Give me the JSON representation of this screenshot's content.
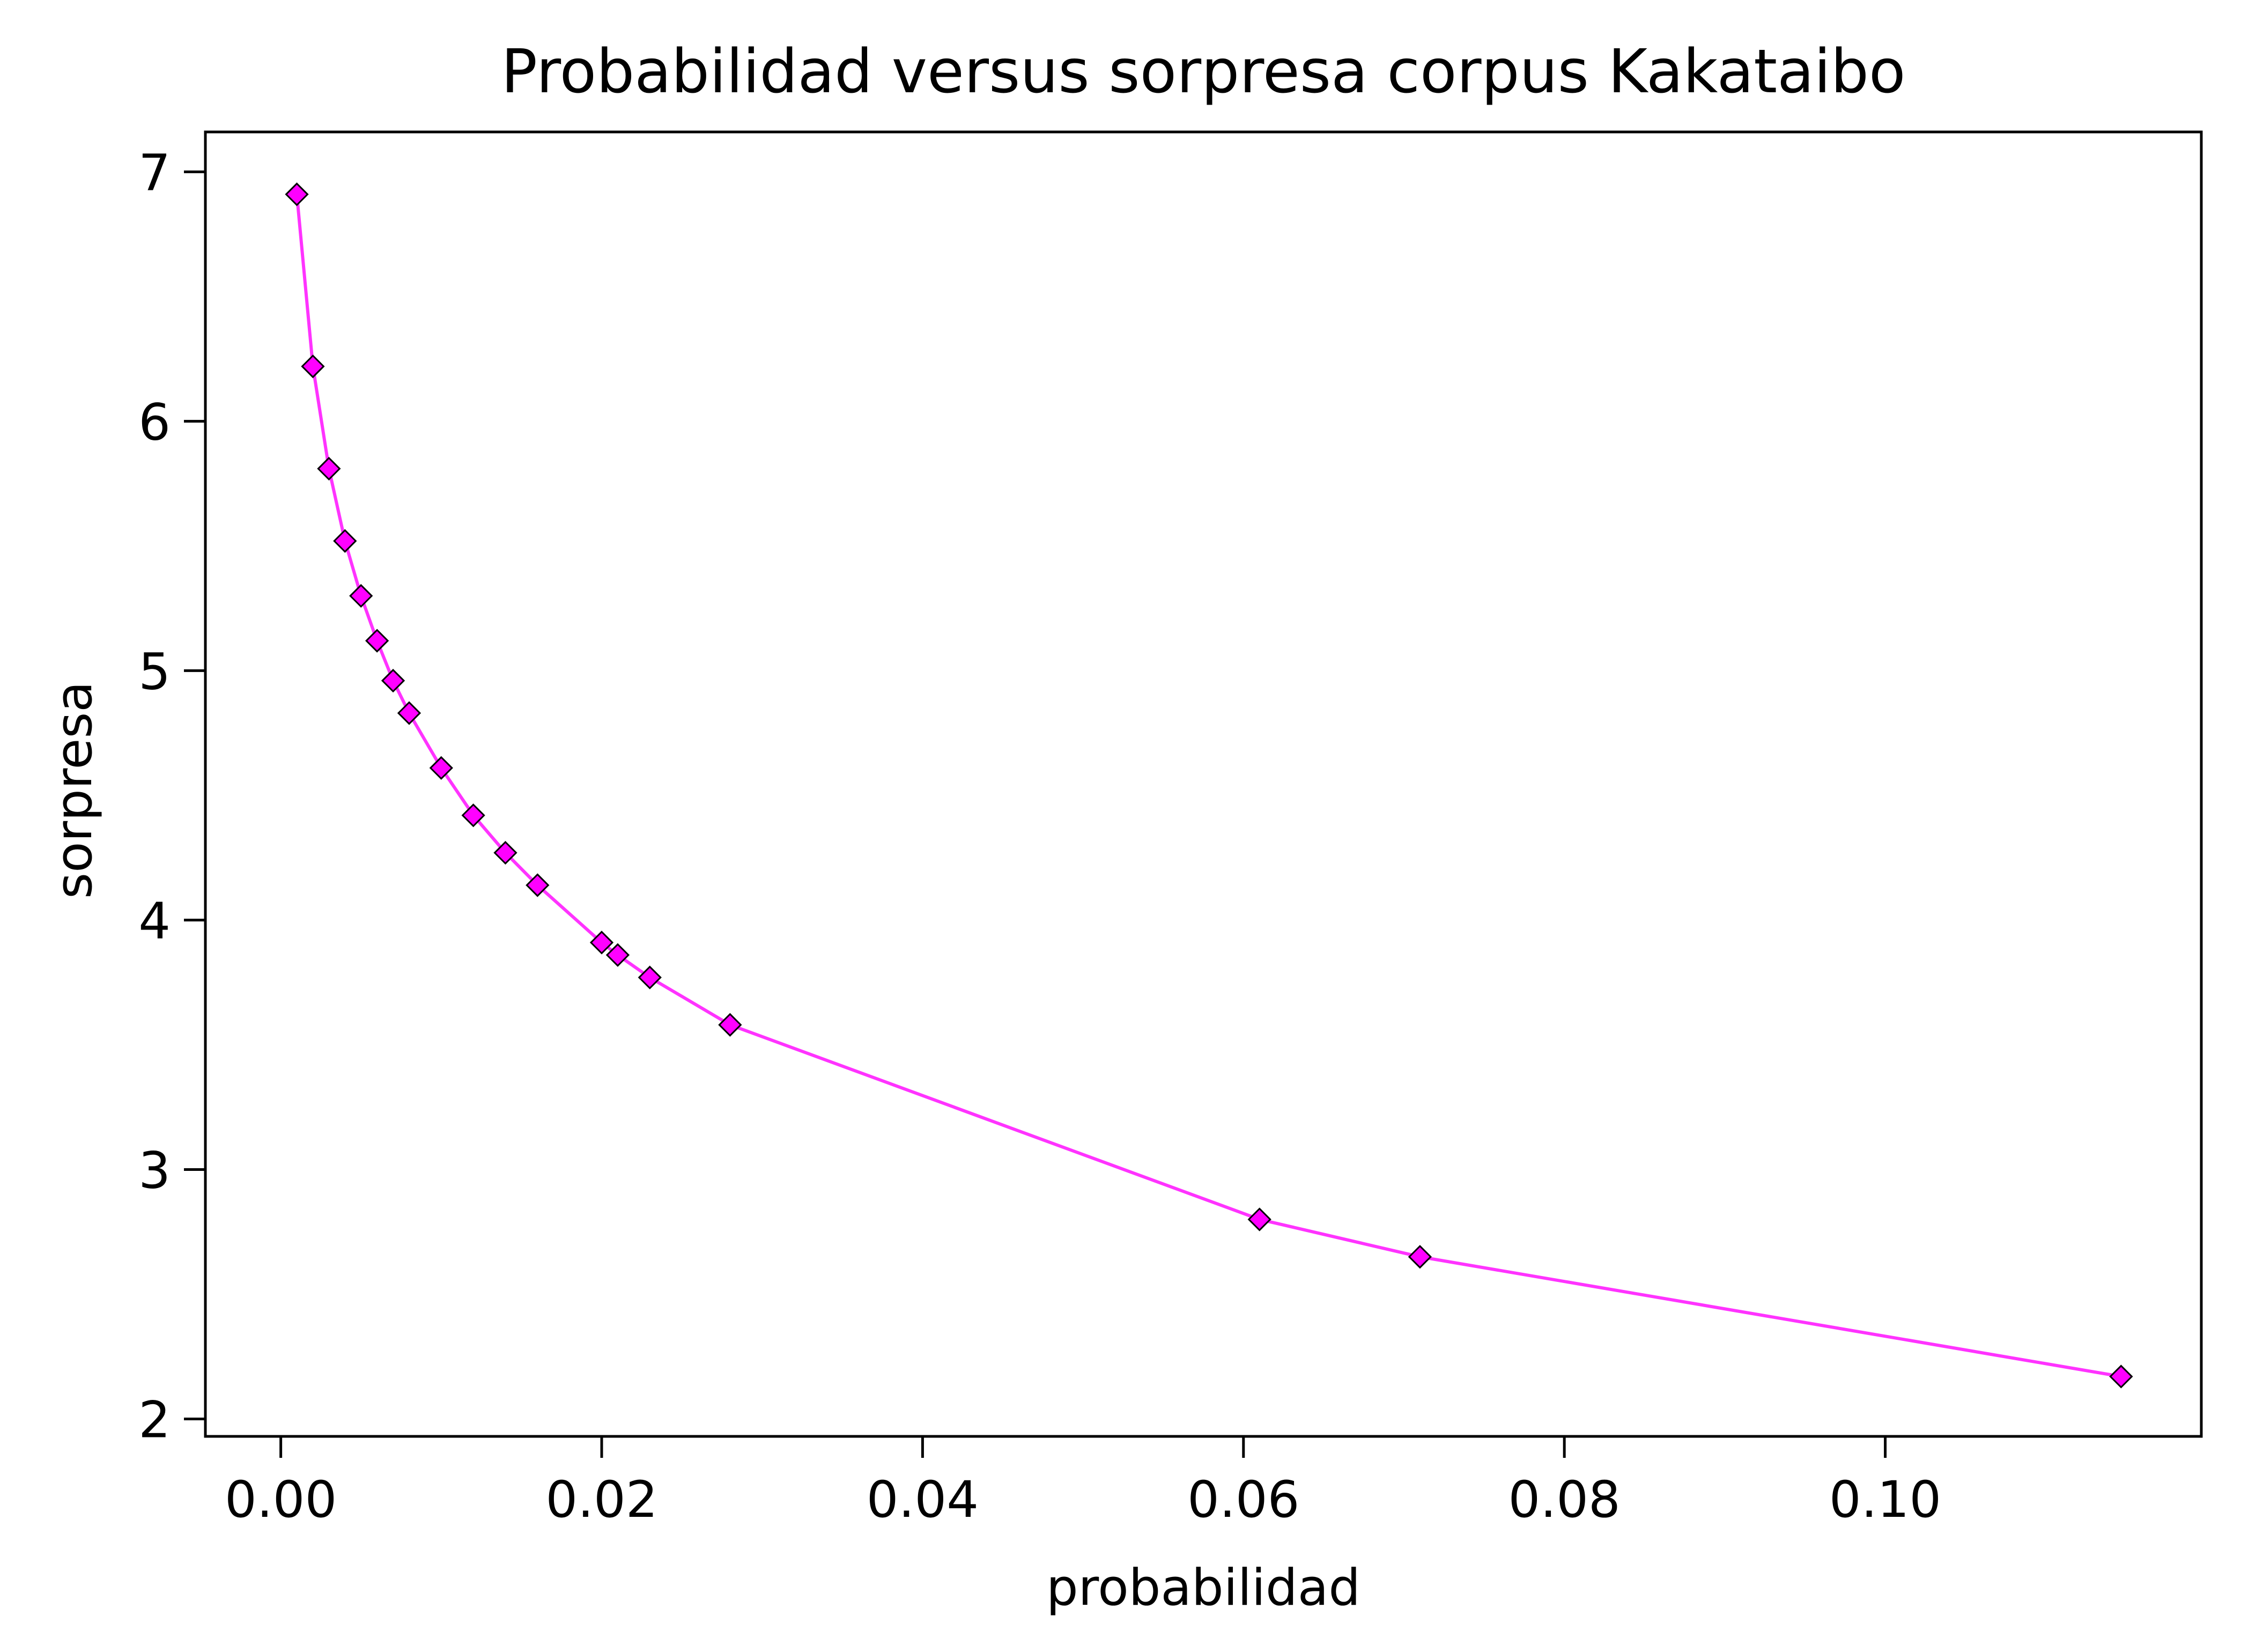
{
  "chart_data": {
    "type": "line",
    "title": "Probabilidad versus sorpresa corpus Kakataibo",
    "xlabel": "probabilidad",
    "ylabel": "sorpresa",
    "xlim": [
      -0.0047,
      0.1197
    ],
    "ylim": [
      1.93,
      7.16
    ],
    "xticks": [
      0.0,
      0.02,
      0.04,
      0.06,
      0.08,
      0.1
    ],
    "xtick_labels": [
      "0.00",
      "0.02",
      "0.04",
      "0.06",
      "0.08",
      "0.10"
    ],
    "yticks": [
      2,
      3,
      4,
      5,
      6,
      7
    ],
    "ytick_labels": [
      "2",
      "3",
      "4",
      "5",
      "6",
      "7"
    ],
    "grid": false,
    "legend": "none",
    "series": [
      {
        "color": "#ff33ff",
        "marker": "diamond",
        "marker_color": "#ff00ff",
        "marker_edge_color": "#000000",
        "x": [
          0.001,
          0.002,
          0.003,
          0.004,
          0.005,
          0.006,
          0.007,
          0.008,
          0.01,
          0.012,
          0.014,
          0.016,
          0.02,
          0.021,
          0.023,
          0.028,
          0.061,
          0.071,
          0.1147
        ],
        "y": [
          6.91,
          6.22,
          5.81,
          5.52,
          5.3,
          5.12,
          4.96,
          4.83,
          4.61,
          4.42,
          4.27,
          4.14,
          3.91,
          3.86,
          3.77,
          3.58,
          2.8,
          2.65,
          2.17
        ]
      }
    ]
  }
}
